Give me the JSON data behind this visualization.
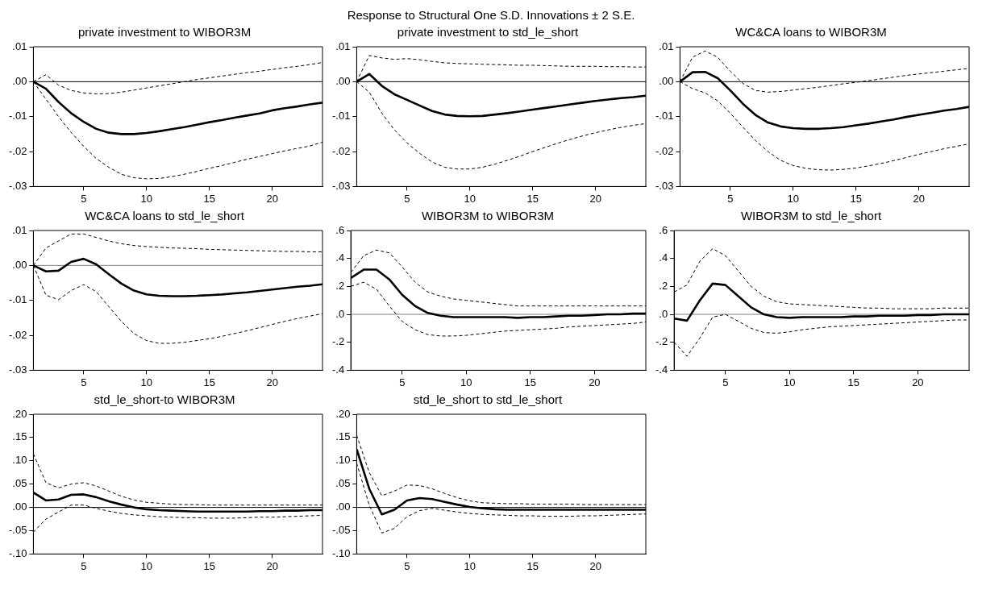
{
  "chart_data": [
    {
      "type": "line",
      "annotations": [
        "Response to Structural One S.D. Innovations ± 2 S.E."
      ],
      "title": "private investment to WIBOR3M",
      "x": [
        1,
        2,
        3,
        4,
        5,
        6,
        7,
        8,
        9,
        10,
        11,
        12,
        13,
        14,
        15,
        16,
        17,
        18,
        19,
        20,
        21,
        22,
        23,
        24
      ],
      "xlim": [
        1,
        24
      ],
      "xticks": [
        5,
        10,
        15,
        20
      ],
      "ylim": [
        -0.03,
        0.01
      ],
      "yticks": [
        {
          "value": -0.03,
          "label": "-.03"
        },
        {
          "value": -0.02,
          "label": "-.02"
        },
        {
          "value": -0.01,
          "label": "-.01"
        },
        {
          "value": 0,
          "label": ".00"
        },
        {
          "value": 0.01,
          "label": ".01"
        }
      ],
      "grid": false,
      "legend": false,
      "ref_lines": [
        {
          "axis": "y",
          "value": 0,
          "color": "#000000"
        }
      ],
      "series": [
        {
          "color": "#000000",
          "line_style": "solid",
          "values": [
            0,
            -0.002,
            -0.0058,
            -0.009,
            -0.0115,
            -0.0135,
            -0.0146,
            -0.015,
            -0.015,
            -0.0147,
            -0.0142,
            -0.0136,
            -0.013,
            -0.0123,
            -0.0116,
            -0.011,
            -0.0103,
            -0.0097,
            -0.0091,
            -0.0082,
            -0.0076,
            -0.0071,
            -0.0065,
            -0.006
          ]
        },
        {
          "color": "#000000",
          "line_style": "dashed",
          "values": [
            0,
            0.002,
            -0.001,
            -0.0025,
            -0.0032,
            -0.0035,
            -0.0034,
            -0.003,
            -0.0024,
            -0.0018,
            -0.0012,
            -0.0006,
            0,
            0.0006,
            0.0011,
            0.0016,
            0.0021,
            0.0026,
            0.003,
            0.0035,
            0.004,
            0.0044,
            0.0049,
            0.0055
          ]
        },
        {
          "color": "#000000",
          "line_style": "dashed",
          "values": [
            0,
            -0.005,
            -0.01,
            -0.0145,
            -0.0185,
            -0.022,
            -0.0245,
            -0.0265,
            -0.0275,
            -0.0278,
            -0.0277,
            -0.0272,
            -0.0265,
            -0.0257,
            -0.0248,
            -0.024,
            -0.0231,
            -0.0222,
            -0.0214,
            -0.0206,
            -0.0198,
            -0.0191,
            -0.0184,
            -0.0173
          ]
        }
      ]
    },
    {
      "type": "line",
      "title": "private investment to std_le_short",
      "x": [
        1,
        2,
        3,
        4,
        5,
        6,
        7,
        8,
        9,
        10,
        11,
        12,
        13,
        14,
        15,
        16,
        17,
        18,
        19,
        20,
        21,
        22,
        23,
        24
      ],
      "xlim": [
        1,
        24
      ],
      "xticks": [
        5,
        10,
        15,
        20
      ],
      "ylim": [
        -0.03,
        0.01
      ],
      "yticks": [
        {
          "value": -0.03,
          "label": "-.03"
        },
        {
          "value": -0.02,
          "label": "-.02"
        },
        {
          "value": -0.01,
          "label": "-.01"
        },
        {
          "value": 0,
          "label": ".00"
        },
        {
          "value": 0.01,
          "label": ".01"
        }
      ],
      "grid": false,
      "legend": false,
      "ref_lines": [
        {
          "axis": "y",
          "value": 0,
          "color": "#000000"
        }
      ],
      "series": [
        {
          "color": "#000000",
          "line_style": "solid",
          "values": [
            0,
            0.0022,
            -0.0012,
            -0.0036,
            -0.0052,
            -0.0068,
            -0.0084,
            -0.0094,
            -0.0098,
            -0.0099,
            -0.0098,
            -0.0094,
            -0.009,
            -0.0085,
            -0.008,
            -0.0075,
            -0.007,
            -0.0065,
            -0.006,
            -0.0055,
            -0.0051,
            -0.0047,
            -0.0044,
            -0.004
          ]
        },
        {
          "color": "#000000",
          "line_style": "dashed",
          "values": [
            0,
            0.0075,
            0.0068,
            0.0064,
            0.0066,
            0.0063,
            0.0058,
            0.0054,
            0.0052,
            0.0051,
            0.005,
            0.0049,
            0.0048,
            0.0047,
            0.0047,
            0.0046,
            0.0045,
            0.0044,
            0.0044,
            0.0044,
            0.0043,
            0.0043,
            0.0042,
            0.0042
          ]
        },
        {
          "color": "#000000",
          "line_style": "dashed",
          "values": [
            0,
            -0.003,
            -0.009,
            -0.0138,
            -0.0175,
            -0.0205,
            -0.023,
            -0.0245,
            -0.025,
            -0.025,
            -0.0245,
            -0.0236,
            -0.0225,
            -0.0213,
            -0.02,
            -0.0188,
            -0.0176,
            -0.0165,
            -0.0155,
            -0.0146,
            -0.0138,
            -0.0131,
            -0.0125,
            -0.012
          ]
        }
      ]
    },
    {
      "type": "line",
      "title": "WC&CA loans to WIBOR3M",
      "x": [
        1,
        2,
        3,
        4,
        5,
        6,
        7,
        8,
        9,
        10,
        11,
        12,
        13,
        14,
        15,
        16,
        17,
        18,
        19,
        20,
        21,
        22,
        23,
        24
      ],
      "xlim": [
        1,
        24
      ],
      "xticks": [
        5,
        10,
        15,
        20
      ],
      "ylim": [
        -0.03,
        0.01
      ],
      "yticks": [
        {
          "value": -0.03,
          "label": "-.03"
        },
        {
          "value": -0.02,
          "label": "-.02"
        },
        {
          "value": -0.01,
          "label": "-.01"
        },
        {
          "value": 0,
          "label": ".00"
        },
        {
          "value": 0.01,
          "label": ".01"
        }
      ],
      "grid": false,
      "legend": false,
      "ref_lines": [
        {
          "axis": "y",
          "value": 0,
          "color": "#000000"
        }
      ],
      "series": [
        {
          "color": "#000000",
          "line_style": "solid",
          "values": [
            0,
            0.0027,
            0.0028,
            0.001,
            -0.0025,
            -0.0063,
            -0.0095,
            -0.0117,
            -0.0128,
            -0.0133,
            -0.0135,
            -0.0135,
            -0.0133,
            -0.013,
            -0.0125,
            -0.012,
            -0.0114,
            -0.0108,
            -0.0101,
            -0.0095,
            -0.0089,
            -0.0083,
            -0.0078,
            -0.0072
          ]
        },
        {
          "color": "#000000",
          "line_style": "dashed",
          "values": [
            0,
            0.007,
            0.0088,
            0.007,
            0.003,
            -0.0005,
            -0.0025,
            -0.003,
            -0.0028,
            -0.0024,
            -0.002,
            -0.0016,
            -0.0011,
            -0.0006,
            -0.0002,
            0.0003,
            0.0008,
            0.0013,
            0.0018,
            0.0022,
            0.0026,
            0.003,
            0.0034,
            0.0038
          ]
        },
        {
          "color": "#000000",
          "line_style": "dashed",
          "values": [
            0,
            -0.002,
            -0.0032,
            -0.0055,
            -0.009,
            -0.013,
            -0.0168,
            -0.02,
            -0.0225,
            -0.024,
            -0.0248,
            -0.0252,
            -0.0253,
            -0.0251,
            -0.0247,
            -0.0241,
            -0.0234,
            -0.0226,
            -0.0217,
            -0.0208,
            -0.02,
            -0.0192,
            -0.0185,
            -0.0178
          ]
        }
      ]
    },
    {
      "type": "line",
      "title": "WC&CA loans to std_le_short",
      "x": [
        1,
        2,
        3,
        4,
        5,
        6,
        7,
        8,
        9,
        10,
        11,
        12,
        13,
        14,
        15,
        16,
        17,
        18,
        19,
        20,
        21,
        22,
        23,
        24
      ],
      "xlim": [
        1,
        24
      ],
      "xticks": [
        5,
        10,
        15,
        20
      ],
      "ylim": [
        -0.03,
        0.01
      ],
      "yticks": [
        {
          "value": -0.03,
          "label": "-.03"
        },
        {
          "value": -0.02,
          "label": "-.02"
        },
        {
          "value": -0.01,
          "label": "-.01"
        },
        {
          "value": 0,
          "label": ".00"
        },
        {
          "value": 0.01,
          "label": ".01"
        }
      ],
      "grid": false,
      "legend": false,
      "ref_lines": [
        {
          "axis": "y",
          "value": 0,
          "color": "#808080"
        }
      ],
      "series": [
        {
          "color": "#000000",
          "line_style": "solid",
          "values": [
            0,
            -0.0017,
            -0.0015,
            0.001,
            0.0019,
            0.0003,
            -0.0025,
            -0.0052,
            -0.0072,
            -0.0083,
            -0.0087,
            -0.0088,
            -0.0088,
            -0.0087,
            -0.0085,
            -0.0083,
            -0.008,
            -0.0077,
            -0.0073,
            -0.0069,
            -0.0065,
            -0.0061,
            -0.0058,
            -0.0054
          ]
        },
        {
          "color": "#000000",
          "line_style": "dashed",
          "values": [
            0,
            0.005,
            0.007,
            0.009,
            0.009,
            0.008,
            0.007,
            0.0062,
            0.0057,
            0.0054,
            0.0052,
            0.005,
            0.0049,
            0.0048,
            0.0046,
            0.0045,
            0.0044,
            0.0043,
            0.0042,
            0.0041,
            0.004,
            0.004,
            0.0039,
            0.0039
          ]
        },
        {
          "color": "#000000",
          "line_style": "dashed",
          "values": [
            0,
            -0.0085,
            -0.0098,
            -0.0072,
            -0.0055,
            -0.0075,
            -0.0118,
            -0.016,
            -0.0195,
            -0.0215,
            -0.0223,
            -0.0223,
            -0.022,
            -0.0215,
            -0.021,
            -0.0203,
            -0.0195,
            -0.0187,
            -0.0178,
            -0.0169,
            -0.016,
            -0.0152,
            -0.0145,
            -0.0138
          ]
        }
      ]
    },
    {
      "type": "line",
      "title": "WIBOR3M to WIBOR3M",
      "x": [
        1,
        2,
        3,
        4,
        5,
        6,
        7,
        8,
        9,
        10,
        11,
        12,
        13,
        14,
        15,
        16,
        17,
        18,
        19,
        20,
        21,
        22,
        23,
        24
      ],
      "xlim": [
        1,
        24
      ],
      "xticks": [
        5,
        10,
        15,
        20
      ],
      "ylim": [
        -0.4,
        0.6
      ],
      "yticks": [
        {
          "value": -0.4,
          "label": "-.4"
        },
        {
          "value": -0.2,
          "label": "-.2"
        },
        {
          "value": 0,
          "label": ".0"
        },
        {
          "value": 0.2,
          "label": ".2"
        },
        {
          "value": 0.4,
          "label": ".4"
        },
        {
          "value": 0.6,
          "label": ".6"
        }
      ],
      "grid": false,
      "legend": false,
      "ref_lines": [
        {
          "axis": "y",
          "value": 0,
          "color": "#808080"
        }
      ],
      "series": [
        {
          "color": "#000000",
          "line_style": "solid",
          "values": [
            0.26,
            0.32,
            0.32,
            0.25,
            0.14,
            0.06,
            0.01,
            -0.01,
            -0.02,
            -0.02,
            -0.02,
            -0.02,
            -0.02,
            -0.025,
            -0.02,
            -0.02,
            -0.015,
            -0.01,
            -0.01,
            -0.005,
            0,
            0,
            0.005,
            0.005
          ]
        },
        {
          "color": "#000000",
          "line_style": "dashed",
          "values": [
            0.3,
            0.42,
            0.46,
            0.44,
            0.34,
            0.23,
            0.16,
            0.13,
            0.11,
            0.1,
            0.09,
            0.08,
            0.07,
            0.06,
            0.06,
            0.06,
            0.06,
            0.06,
            0.06,
            0.06,
            0.06,
            0.06,
            0.06,
            0.06
          ]
        },
        {
          "color": "#000000",
          "line_style": "dashed",
          "values": [
            0.2,
            0.23,
            0.18,
            0.06,
            -0.05,
            -0.11,
            -0.145,
            -0.155,
            -0.155,
            -0.15,
            -0.14,
            -0.13,
            -0.12,
            -0.115,
            -0.11,
            -0.105,
            -0.1,
            -0.09,
            -0.085,
            -0.08,
            -0.075,
            -0.07,
            -0.065,
            -0.055
          ]
        }
      ]
    },
    {
      "type": "line",
      "title": "WIBOR3M to std_le_short",
      "x": [
        1,
        2,
        3,
        4,
        5,
        6,
        7,
        8,
        9,
        10,
        11,
        12,
        13,
        14,
        15,
        16,
        17,
        18,
        19,
        20,
        21,
        22,
        23,
        24
      ],
      "xlim": [
        1,
        24
      ],
      "xticks": [
        5,
        10,
        15,
        20
      ],
      "ylim": [
        -0.4,
        0.6
      ],
      "yticks": [
        {
          "value": -0.4,
          "label": "-.4"
        },
        {
          "value": -0.2,
          "label": "-.2"
        },
        {
          "value": 0,
          "label": ".0"
        },
        {
          "value": 0.2,
          "label": ".2"
        },
        {
          "value": 0.4,
          "label": ".4"
        },
        {
          "value": 0.6,
          "label": ".6"
        }
      ],
      "grid": false,
      "legend": false,
      "ref_lines": [
        {
          "axis": "y",
          "value": 0,
          "color": "#808080"
        }
      ],
      "series": [
        {
          "color": "#000000",
          "line_style": "solid",
          "values": [
            -0.03,
            -0.045,
            0.1,
            0.22,
            0.21,
            0.13,
            0.05,
            0,
            -0.02,
            -0.025,
            -0.02,
            -0.02,
            -0.02,
            -0.02,
            -0.015,
            -0.015,
            -0.01,
            -0.01,
            -0.01,
            -0.005,
            -0.005,
            0,
            0,
            0
          ]
        },
        {
          "color": "#000000",
          "line_style": "dashed",
          "values": [
            0.16,
            0.21,
            0.38,
            0.47,
            0.42,
            0.31,
            0.2,
            0.13,
            0.09,
            0.075,
            0.07,
            0.065,
            0.06,
            0.055,
            0.05,
            0.045,
            0.045,
            0.04,
            0.04,
            0.04,
            0.04,
            0.045,
            0.045,
            0.045
          ]
        },
        {
          "color": "#000000",
          "line_style": "dashed",
          "values": [
            -0.2,
            -0.3,
            -0.17,
            -0.02,
            0,
            -0.05,
            -0.1,
            -0.13,
            -0.135,
            -0.125,
            -0.11,
            -0.1,
            -0.09,
            -0.085,
            -0.08,
            -0.075,
            -0.07,
            -0.065,
            -0.06,
            -0.055,
            -0.05,
            -0.045,
            -0.04,
            -0.04
          ]
        }
      ]
    },
    {
      "type": "line",
      "title": "std_le_short-to WIBOR3M",
      "x": [
        1,
        2,
        3,
        4,
        5,
        6,
        7,
        8,
        9,
        10,
        11,
        12,
        13,
        14,
        15,
        16,
        17,
        18,
        19,
        20,
        21,
        22,
        23,
        24
      ],
      "xlim": [
        1,
        24
      ],
      "xticks": [
        5,
        10,
        15,
        20
      ],
      "ylim": [
        -0.1,
        0.2
      ],
      "yticks": [
        {
          "value": -0.1,
          "label": "-.10"
        },
        {
          "value": -0.05,
          "label": "-.05"
        },
        {
          "value": 0,
          "label": ".00"
        },
        {
          "value": 0.05,
          "label": ".05"
        },
        {
          "value": 0.1,
          "label": ".10"
        },
        {
          "value": 0.15,
          "label": ".15"
        },
        {
          "value": 0.2,
          "label": ".20"
        }
      ],
      "grid": false,
      "legend": false,
      "ref_lines": [
        {
          "axis": "y",
          "value": 0,
          "color": "#000000"
        }
      ],
      "series": [
        {
          "color": "#000000",
          "line_style": "solid",
          "values": [
            0.032,
            0.015,
            0.017,
            0.027,
            0.028,
            0.022,
            0.013,
            0.006,
            0,
            -0.004,
            -0.006,
            -0.007,
            -0.008,
            -0.009,
            -0.009,
            -0.009,
            -0.009,
            -0.009,
            -0.008,
            -0.008,
            -0.007,
            -0.007,
            -0.006,
            -0.006
          ]
        },
        {
          "color": "#000000",
          "line_style": "dashed",
          "values": [
            0.115,
            0.053,
            0.042,
            0.05,
            0.053,
            0.046,
            0.035,
            0.024,
            0.016,
            0.011,
            0.009,
            0.007,
            0.006,
            0.006,
            0.005,
            0.005,
            0.005,
            0.005,
            0.005,
            0.005,
            0.005,
            0.005,
            0.005,
            0.005
          ]
        },
        {
          "color": "#000000",
          "line_style": "dashed",
          "values": [
            -0.053,
            -0.025,
            -0.01,
            0.005,
            0.005,
            -0.002,
            -0.008,
            -0.013,
            -0.016,
            -0.018,
            -0.02,
            -0.021,
            -0.022,
            -0.022,
            -0.023,
            -0.023,
            -0.023,
            -0.022,
            -0.021,
            -0.021,
            -0.02,
            -0.019,
            -0.018,
            -0.017
          ]
        }
      ]
    },
    {
      "type": "line",
      "title": "std_le_short to std_le_short",
      "x": [
        1,
        2,
        3,
        4,
        5,
        6,
        7,
        8,
        9,
        10,
        11,
        12,
        13,
        14,
        15,
        16,
        17,
        18,
        19,
        20,
        21,
        22,
        23,
        24
      ],
      "xlim": [
        1,
        24
      ],
      "xticks": [
        5,
        10,
        15,
        20
      ],
      "ylim": [
        -0.1,
        0.2
      ],
      "yticks": [
        {
          "value": -0.1,
          "label": "-.10"
        },
        {
          "value": -0.05,
          "label": "-.05"
        },
        {
          "value": 0,
          "label": ".00"
        },
        {
          "value": 0.05,
          "label": ".05"
        },
        {
          "value": 0.1,
          "label": ".10"
        },
        {
          "value": 0.15,
          "label": ".15"
        },
        {
          "value": 0.2,
          "label": ".20"
        }
      ],
      "grid": false,
      "legend": false,
      "ref_lines": [
        {
          "axis": "y",
          "value": 0,
          "color": "#000000"
        }
      ],
      "series": [
        {
          "color": "#000000",
          "line_style": "solid",
          "values": [
            0.125,
            0.04,
            -0.015,
            -0.005,
            0.015,
            0.02,
            0.018,
            0.012,
            0.006,
            0.001,
            -0.002,
            -0.004,
            -0.005,
            -0.005,
            -0.005,
            -0.005,
            -0.005,
            -0.005,
            -0.005,
            -0.005,
            -0.005,
            -0.005,
            -0.005,
            -0.005
          ]
        },
        {
          "color": "#000000",
          "line_style": "dashed",
          "values": [
            0.155,
            0.075,
            0.025,
            0.035,
            0.048,
            0.047,
            0.04,
            0.03,
            0.021,
            0.014,
            0.01,
            0.009,
            0.008,
            0.008,
            0.007,
            0.007,
            0.007,
            0.007,
            0.006,
            0.006,
            0.006,
            0.006,
            0.006,
            0.006
          ]
        },
        {
          "color": "#000000",
          "line_style": "dashed",
          "values": [
            0.095,
            0.005,
            -0.055,
            -0.045,
            -0.02,
            -0.007,
            -0.002,
            -0.006,
            -0.01,
            -0.013,
            -0.015,
            -0.016,
            -0.017,
            -0.018,
            -0.018,
            -0.019,
            -0.019,
            -0.019,
            -0.018,
            -0.018,
            -0.017,
            -0.016,
            -0.015,
            -0.014
          ]
        }
      ]
    }
  ]
}
